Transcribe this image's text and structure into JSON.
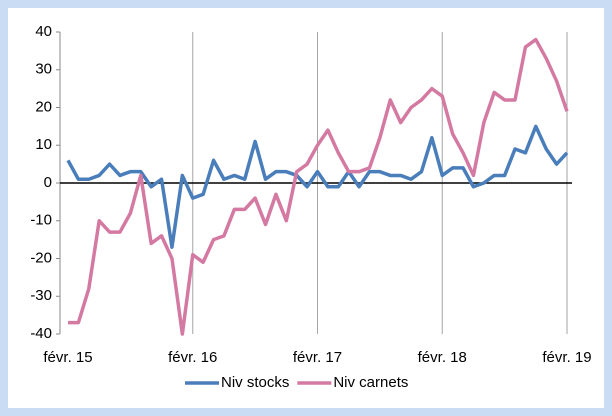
{
  "chart_data": {
    "type": "line",
    "categories": [
      "févr. 15",
      null,
      null,
      null,
      null,
      null,
      null,
      null,
      null,
      null,
      null,
      null,
      "févr. 16",
      null,
      null,
      null,
      null,
      null,
      null,
      null,
      null,
      null,
      null,
      null,
      "févr. 17",
      null,
      null,
      null,
      null,
      null,
      null,
      null,
      null,
      null,
      null,
      null,
      "févr. 18",
      null,
      null,
      null,
      null,
      null,
      null,
      null,
      null,
      null,
      null,
      null,
      "févr. 19"
    ],
    "series": [
      {
        "name": "Niv stocks",
        "color": "#4a7ebb",
        "values": [
          6,
          1,
          1,
          2,
          5,
          2,
          3,
          3,
          -1,
          1,
          -17,
          2,
          -4,
          -3,
          6,
          1,
          2,
          1,
          11,
          1,
          3,
          3,
          2,
          -1,
          3,
          -1,
          -1,
          3,
          -1,
          3,
          3,
          2,
          2,
          1,
          3,
          12,
          2,
          4,
          4,
          -1,
          0,
          2,
          2,
          9,
          8,
          15,
          9,
          5,
          8
        ]
      },
      {
        "name": "Niv carnets",
        "color": "#d47aa2",
        "values": [
          -37,
          -37,
          -28,
          -10,
          -13,
          -13,
          -8,
          2,
          -16,
          -14,
          -20,
          -40,
          -19,
          -21,
          -15,
          -14,
          -7,
          -7,
          -4,
          -11,
          -3,
          -10,
          3,
          5,
          10,
          14,
          8,
          3,
          3,
          4,
          12,
          22,
          16,
          20,
          22,
          25,
          23,
          13,
          8,
          2,
          16,
          24,
          22,
          22,
          36,
          38,
          33,
          27,
          19
        ]
      }
    ],
    "ylim": [
      -40,
      40
    ],
    "yticks": [
      -40,
      -30,
      -20,
      -10,
      0,
      10,
      20,
      30,
      40
    ],
    "legend": "bottom"
  }
}
